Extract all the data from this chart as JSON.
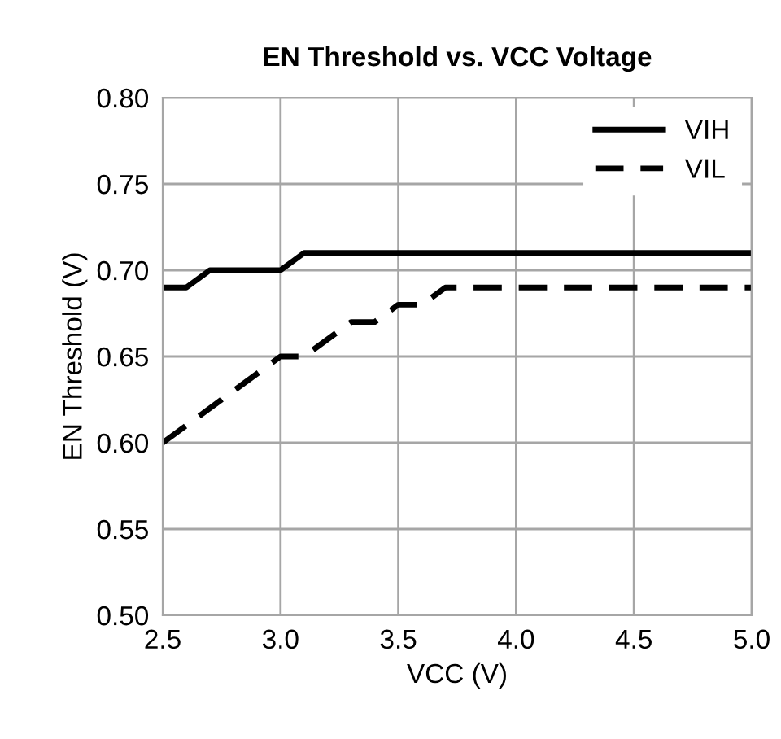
{
  "chart_data": {
    "type": "line",
    "title": "EN Threshold vs. VCC Voltage",
    "xlabel": "VCC (V)",
    "ylabel": "EN Threshold (V)",
    "series": [
      {
        "name": "VIH",
        "color": "#000000",
        "line_style": "solid",
        "x": [
          2.5,
          2.6,
          2.7,
          3.0,
          3.1,
          5.0
        ],
        "values": [
          0.69,
          0.69,
          0.7,
          0.7,
          0.71,
          0.71
        ]
      },
      {
        "name": "VIL",
        "color": "#000000",
        "line_style": "dashed",
        "x": [
          2.5,
          3.0,
          3.1,
          3.3,
          3.4,
          3.5,
          3.6,
          3.7,
          5.0
        ],
        "values": [
          0.6,
          0.65,
          0.65,
          0.67,
          0.67,
          0.68,
          0.68,
          0.69,
          0.69
        ]
      }
    ],
    "xlim": [
      2.5,
      5.0
    ],
    "xticks": [
      {
        "value": 2.5,
        "label": "2.5"
      },
      {
        "value": 3.0,
        "label": "3.0"
      },
      {
        "value": 3.5,
        "label": "3.5"
      },
      {
        "value": 4.0,
        "label": "4.0"
      },
      {
        "value": 4.5,
        "label": "4.5"
      },
      {
        "value": 5.0,
        "label": "5.0"
      }
    ],
    "ylim": [
      0.5,
      0.8
    ],
    "yticks": [
      {
        "value": 0.5,
        "label": "0.50"
      },
      {
        "value": 0.55,
        "label": "0.55"
      },
      {
        "value": 0.6,
        "label": "0.60"
      },
      {
        "value": 0.65,
        "label": "0.65"
      },
      {
        "value": 0.7,
        "label": "0.70"
      },
      {
        "value": 0.75,
        "label": "0.75"
      },
      {
        "value": 0.8,
        "label": "0.80"
      }
    ],
    "grid": true,
    "legend": "top right",
    "marker": "none"
  }
}
